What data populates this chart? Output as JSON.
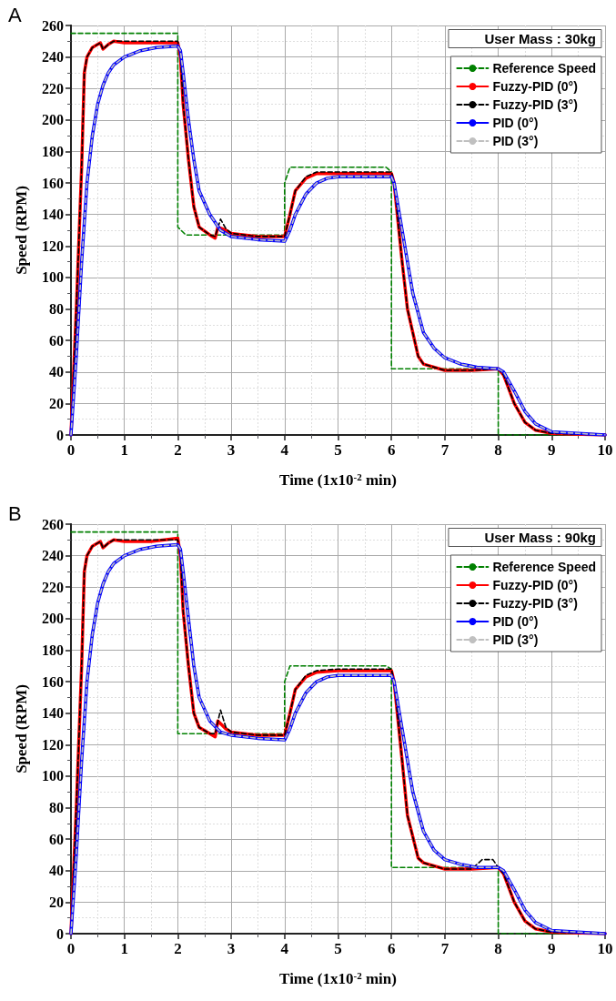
{
  "chart_data": [
    {
      "type": "line",
      "title": "A",
      "xlabel": "Time (1x10$^{-2}$ min)",
      "ylabel": "Speed (RPM)",
      "legend_title": "User Mass : 30kg",
      "xlim": [
        0,
        10
      ],
      "xticks": [
        0,
        1,
        2,
        3,
        4,
        5,
        6,
        7,
        8,
        9,
        10
      ],
      "ylim": [
        0,
        260
      ],
      "yticks": [
        0,
        20,
        40,
        60,
        80,
        100,
        120,
        140,
        160,
        180,
        200,
        220,
        240,
        260
      ],
      "grid": true,
      "legend": "top right",
      "marker": "none",
      "series": [
        {
          "name": "Reference Speed",
          "color": "#008000",
          "line_style": "dashed",
          "x": [
            0,
            2,
            2,
            2.15,
            4,
            4,
            4.1,
            5.9,
            6,
            6,
            8,
            8,
            10
          ],
          "values": [
            255,
            255,
            132,
            127,
            127,
            160,
            170,
            170,
            167,
            42,
            42,
            0,
            0
          ]
        },
        {
          "name": "Fuzzy-PID (0°)",
          "color": "#ff0000",
          "line_style": "solid",
          "x": [
            0,
            0.1,
            0.2,
            0.25,
            0.3,
            0.4,
            0.55,
            0.6,
            0.7,
            0.8,
            1,
            1.5,
            2,
            2.05,
            2.1,
            2.2,
            2.3,
            2.4,
            2.6,
            2.7,
            2.75,
            2.9,
            3,
            3.5,
            4,
            4.1,
            4.2,
            4.4,
            4.6,
            5,
            6,
            6.05,
            6.2,
            6.3,
            6.5,
            6.6,
            7,
            7.5,
            8,
            8.1,
            8.3,
            8.5,
            8.7,
            9,
            10
          ],
          "values": [
            0,
            80,
            170,
            230,
            240,
            246,
            249,
            245,
            248,
            250,
            249,
            249,
            249,
            240,
            210,
            175,
            145,
            132,
            127,
            125,
            132,
            130,
            128,
            126,
            126,
            140,
            155,
            163,
            166,
            166,
            166,
            160,
            110,
            80,
            50,
            45,
            41,
            41,
            42,
            38,
            20,
            8,
            3,
            1,
            0
          ]
        },
        {
          "name": "Fuzzy-PID (3°)",
          "color": "#000000",
          "line_style": "dashed",
          "x": [
            0,
            0.1,
            0.2,
            0.25,
            0.3,
            0.4,
            0.55,
            0.6,
            0.7,
            0.8,
            1,
            1.5,
            2,
            2.05,
            2.1,
            2.2,
            2.3,
            2.4,
            2.6,
            2.7,
            2.8,
            2.9,
            3,
            3.5,
            4,
            4.1,
            4.2,
            4.4,
            4.6,
            5,
            6,
            6.05,
            6.2,
            6.3,
            6.5,
            6.6,
            7,
            7.5,
            8,
            8.1,
            8.3,
            8.5,
            8.7,
            9,
            10
          ],
          "values": [
            0,
            80,
            170,
            230,
            240,
            246,
            249,
            245,
            248,
            250,
            250,
            250,
            250,
            241,
            210,
            175,
            145,
            132,
            127,
            126,
            137,
            131,
            128,
            126,
            126,
            140,
            155,
            164,
            167,
            167,
            167,
            160,
            110,
            80,
            50,
            45,
            41,
            41,
            42,
            38,
            20,
            8,
            3,
            1,
            0
          ]
        },
        {
          "name": "PID (0°)",
          "color": "#0000ff",
          "line_style": "solid",
          "x": [
            0,
            0.1,
            0.2,
            0.3,
            0.4,
            0.5,
            0.6,
            0.7,
            0.8,
            1,
            1.3,
            1.6,
            2,
            2.05,
            2.1,
            2.2,
            2.3,
            2.4,
            2.6,
            2.8,
            3,
            3.5,
            4,
            4.1,
            4.2,
            4.4,
            4.6,
            4.8,
            5,
            6,
            6.05,
            6.2,
            6.4,
            6.6,
            6.8,
            7,
            7.3,
            7.6,
            8,
            8.1,
            8.3,
            8.5,
            8.7,
            9,
            9.5,
            10
          ],
          "values": [
            0,
            50,
            110,
            160,
            190,
            210,
            222,
            230,
            235,
            240,
            244,
            246,
            247,
            244,
            230,
            200,
            175,
            155,
            140,
            130,
            126,
            124,
            123,
            130,
            140,
            153,
            160,
            163,
            164,
            164,
            160,
            130,
            90,
            65,
            55,
            49,
            45,
            43,
            42,
            40,
            28,
            15,
            7,
            2,
            1,
            0
          ]
        },
        {
          "name": "PID (3°)",
          "color": "#c0c0c0",
          "line_style": "dashed",
          "x": [
            0,
            0.1,
            0.2,
            0.3,
            0.4,
            0.5,
            0.6,
            0.7,
            0.8,
            1,
            1.3,
            1.6,
            2,
            2.05,
            2.1,
            2.2,
            2.3,
            2.4,
            2.6,
            2.8,
            3,
            3.5,
            4,
            4.1,
            4.2,
            4.4,
            4.6,
            4.8,
            5,
            6,
            6.05,
            6.2,
            6.4,
            6.6,
            6.8,
            7,
            7.3,
            7.6,
            8,
            8.1,
            8.3,
            8.5,
            8.7,
            9,
            9.5,
            10
          ],
          "values": [
            0,
            50,
            110,
            160,
            190,
            210,
            222,
            230,
            235,
            240,
            244,
            246,
            247,
            244,
            230,
            200,
            175,
            155,
            140,
            130,
            126,
            124,
            123,
            130,
            140,
            153,
            160,
            163,
            164,
            164,
            160,
            130,
            90,
            65,
            55,
            49,
            45,
            43,
            42,
            40,
            28,
            15,
            7,
            2,
            1,
            0
          ]
        }
      ]
    },
    {
      "type": "line",
      "title": "B",
      "xlabel": "Time (1x10$^{-2}$ min)",
      "ylabel": "Speed (RPM)",
      "legend_title": "User Mass : 90kg",
      "xlim": [
        0,
        10
      ],
      "xticks": [
        0,
        1,
        2,
        3,
        4,
        5,
        6,
        7,
        8,
        9,
        10
      ],
      "ylim": [
        0,
        260
      ],
      "yticks": [
        0,
        20,
        40,
        60,
        80,
        100,
        120,
        140,
        160,
        180,
        200,
        220,
        240,
        260
      ],
      "grid": true,
      "legend": "top right",
      "marker": "none",
      "series": [
        {
          "name": "Reference Speed",
          "color": "#008000",
          "line_style": "dashed",
          "x": [
            0,
            2,
            2,
            4,
            4,
            4.1,
            5.9,
            6,
            6,
            8,
            8,
            10
          ],
          "values": [
            255,
            255,
            127,
            127,
            160,
            170,
            170,
            168,
            42,
            42,
            0,
            0
          ]
        },
        {
          "name": "Fuzzy-PID (0°)",
          "color": "#ff0000",
          "line_style": "solid",
          "x": [
            0,
            0.1,
            0.2,
            0.25,
            0.3,
            0.4,
            0.55,
            0.6,
            0.7,
            0.8,
            1,
            1.5,
            2,
            2.05,
            2.1,
            2.2,
            2.3,
            2.4,
            2.6,
            2.7,
            2.75,
            2.9,
            3,
            3.5,
            4,
            4.1,
            4.2,
            4.4,
            4.6,
            5,
            6,
            6.05,
            6.2,
            6.3,
            6.5,
            6.6,
            7,
            7.5,
            8,
            8.1,
            8.3,
            8.5,
            8.7,
            9,
            10
          ],
          "values": [
            0,
            80,
            170,
            230,
            240,
            246,
            249,
            245,
            248,
            250,
            249,
            249,
            251,
            240,
            205,
            170,
            140,
            131,
            127,
            125,
            135,
            130,
            128,
            126,
            126,
            140,
            155,
            163,
            166,
            167,
            167,
            160,
            110,
            75,
            48,
            45,
            41,
            41,
            42,
            38,
            20,
            8,
            3,
            1,
            0
          ]
        },
        {
          "name": "Fuzzy-PID (3°)",
          "color": "#000000",
          "line_style": "dashed",
          "x": [
            0,
            0.1,
            0.2,
            0.25,
            0.3,
            0.4,
            0.55,
            0.6,
            0.7,
            0.8,
            1,
            1.5,
            2,
            2.05,
            2.1,
            2.2,
            2.3,
            2.4,
            2.6,
            2.7,
            2.8,
            2.9,
            3,
            3.5,
            4,
            4.1,
            4.2,
            4.4,
            4.6,
            5,
            6,
            6.05,
            6.2,
            6.3,
            6.5,
            6.6,
            7,
            7.5,
            7.7,
            7.9,
            8,
            8.1,
            8.3,
            8.5,
            8.7,
            9,
            10
          ],
          "values": [
            0,
            80,
            170,
            230,
            240,
            246,
            249,
            245,
            248,
            250,
            250,
            250,
            250,
            241,
            205,
            170,
            140,
            131,
            127,
            127,
            142,
            131,
            128,
            126,
            126,
            140,
            155,
            164,
            167,
            168,
            168,
            160,
            110,
            75,
            48,
            45,
            41,
            41,
            47,
            47,
            42,
            38,
            20,
            8,
            3,
            1,
            0
          ]
        },
        {
          "name": "PID (0°)",
          "color": "#0000ff",
          "line_style": "solid",
          "x": [
            0,
            0.1,
            0.2,
            0.3,
            0.4,
            0.5,
            0.6,
            0.7,
            0.8,
            1,
            1.3,
            1.6,
            2,
            2.05,
            2.1,
            2.2,
            2.3,
            2.4,
            2.6,
            2.8,
            3,
            3.5,
            4,
            4.1,
            4.2,
            4.4,
            4.6,
            4.8,
            5,
            6,
            6.05,
            6.2,
            6.4,
            6.6,
            6.8,
            7,
            7.3,
            7.6,
            8,
            8.1,
            8.3,
            8.5,
            8.7,
            9,
            9.5,
            10
          ],
          "values": [
            0,
            50,
            110,
            160,
            190,
            210,
            222,
            230,
            235,
            240,
            244,
            246,
            247,
            244,
            230,
            200,
            170,
            150,
            135,
            128,
            126,
            124,
            123,
            130,
            140,
            153,
            160,
            163,
            164,
            164,
            160,
            130,
            90,
            65,
            53,
            47,
            44,
            42,
            42,
            40,
            28,
            15,
            7,
            2,
            1,
            0
          ]
        },
        {
          "name": "PID (3°)",
          "color": "#c0c0c0",
          "line_style": "dashed",
          "x": [
            0,
            0.1,
            0.2,
            0.3,
            0.4,
            0.5,
            0.6,
            0.7,
            0.8,
            1,
            1.3,
            1.6,
            2,
            2.05,
            2.1,
            2.2,
            2.3,
            2.4,
            2.6,
            2.8,
            3,
            3.5,
            4,
            4.1,
            4.2,
            4.4,
            4.6,
            4.8,
            5,
            6,
            6.05,
            6.2,
            6.4,
            6.6,
            6.8,
            7,
            7.3,
            7.6,
            8,
            8.1,
            8.3,
            8.5,
            8.7,
            9,
            9.5,
            10
          ],
          "values": [
            0,
            50,
            110,
            160,
            190,
            210,
            222,
            230,
            235,
            240,
            244,
            246,
            247,
            244,
            230,
            200,
            170,
            150,
            135,
            128,
            126,
            124,
            123,
            130,
            140,
            153,
            160,
            163,
            164,
            164,
            160,
            130,
            90,
            65,
            53,
            47,
            44,
            42,
            42,
            40,
            28,
            15,
            7,
            2,
            1,
            0
          ]
        }
      ]
    }
  ]
}
